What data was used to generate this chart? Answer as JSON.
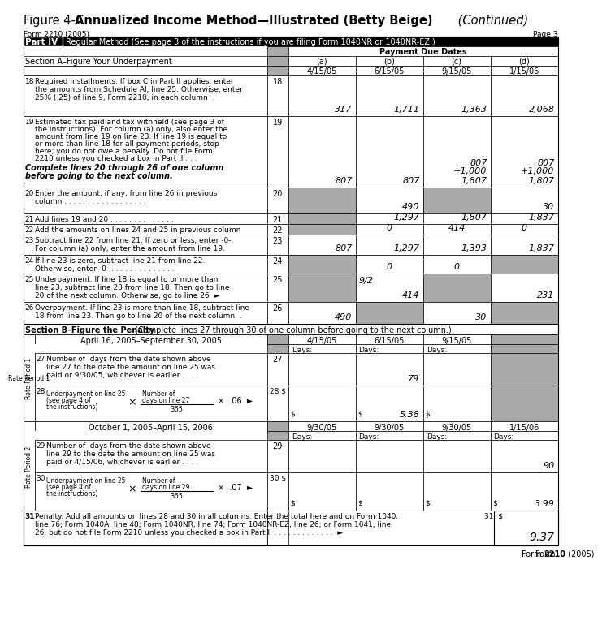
{
  "gray": "#aaaaaa",
  "white": "#ffffff",
  "black": "#000000",
  "fig_prefix": "Figure 4-C. ",
  "fig_bold": "Annualized Income Method—Illustrated (Betty Beige)",
  "fig_italic": " (Continued)",
  "form_label": "Form 2210 (2005)",
  "page_label": "Page 3",
  "part_iv_text": "Regular Method (See page 3 of the instructions if you are filing Form 1040NR or 1040NR-EZ.)",
  "payment_due_dates": "Payment Due Dates",
  "sect_a": "Section A–Figure Your Underpayment",
  "sect_b_bold": "Section B–Figure the Penalty",
  "sect_b_normal": " (Complete lines 27 through 30 of one column before going to the next column.)",
  "col_letters": [
    "(a)",
    "(b)",
    "(c)",
    "(d)"
  ],
  "col_dates_top": [
    "4/15/05",
    "6/15/05",
    "9/15/05",
    "1/15/06"
  ],
  "row18_vals": [
    "317",
    "1,711",
    "1,363",
    "2,068"
  ],
  "row19_bottom": [
    "807",
    "807",
    "1,807",
    "1,807"
  ],
  "row20_vals": [
    "gray",
    "490",
    "gray",
    "30"
  ],
  "row21_vals": [
    "gray",
    "1,297",
    "1,807",
    "1,837"
  ],
  "row22_vals": [
    "gray",
    "0",
    "414",
    "0"
  ],
  "row23_vals": [
    "807",
    "1,297",
    "1,393",
    "1,837"
  ],
  "row24_vals": [
    "gray",
    "0",
    "0",
    "gray"
  ],
  "row25_vals": [
    "gray",
    "414",
    "gray",
    "231"
  ],
  "row26_vals": [
    "490",
    "gray",
    "30",
    "gray"
  ],
  "rp1_header": "April 16, 2005–September 30, 2005",
  "rp1_dates": [
    "4/15/05",
    "6/15/05",
    "9/15/05"
  ],
  "rp1_row27_val": "79",
  "rp1_row28_val": "5.38",
  "rp2_header": "October 1, 2005–April 15, 2006",
  "rp2_dates": [
    "9/30/05",
    "9/30/05",
    "9/30/05",
    "1/15/06"
  ],
  "rp2_row29_val": "90",
  "rp2_row30_val": "3.99",
  "row31_val": "9.37",
  "footer": "Form 2210 (2005)"
}
